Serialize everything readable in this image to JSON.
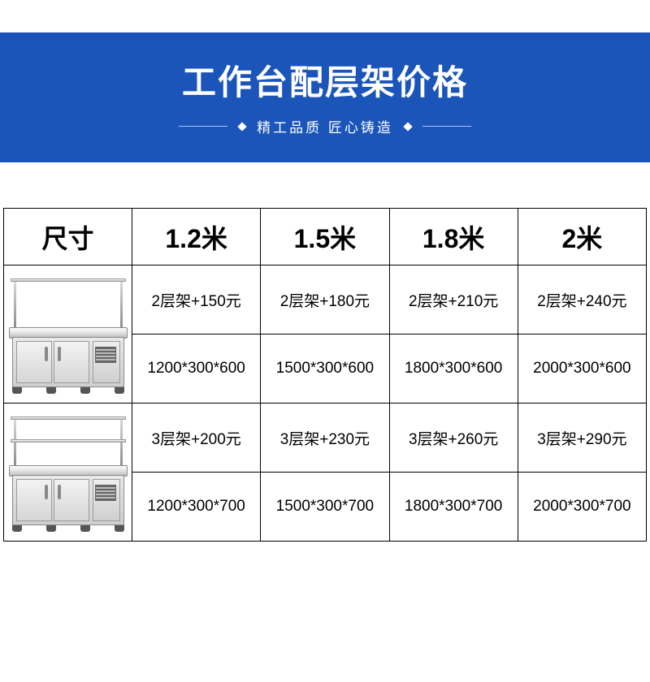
{
  "banner": {
    "title": "工作台配层架价格",
    "subtitle": "精工品质 匠心铸造",
    "bg_color": "#1b55b9",
    "title_color": "#ffffff",
    "sub_color": "#ffffff"
  },
  "table": {
    "border_color": "#000000",
    "header_fontsize": 32,
    "cell_fontsize": 19,
    "columns": [
      "尺寸",
      "1.2米",
      "1.5米",
      "1.8米",
      "2米"
    ],
    "rows": [
      {
        "tier_label": "2层架",
        "prices": [
          "2层架+150元",
          "2层架+180元",
          "2层架+210元",
          "2层架+240元"
        ],
        "dims": [
          "1200*300*600",
          "1500*300*600",
          "1800*300*600",
          "2000*300*600"
        ]
      },
      {
        "tier_label": "3层架",
        "prices": [
          "3层架+200元",
          "3层架+230元",
          "3层架+260元",
          "3层架+290元"
        ],
        "dims": [
          "1200*300*700",
          "1500*300*700",
          "1800*300*700",
          "2000*300*700"
        ]
      }
    ]
  }
}
